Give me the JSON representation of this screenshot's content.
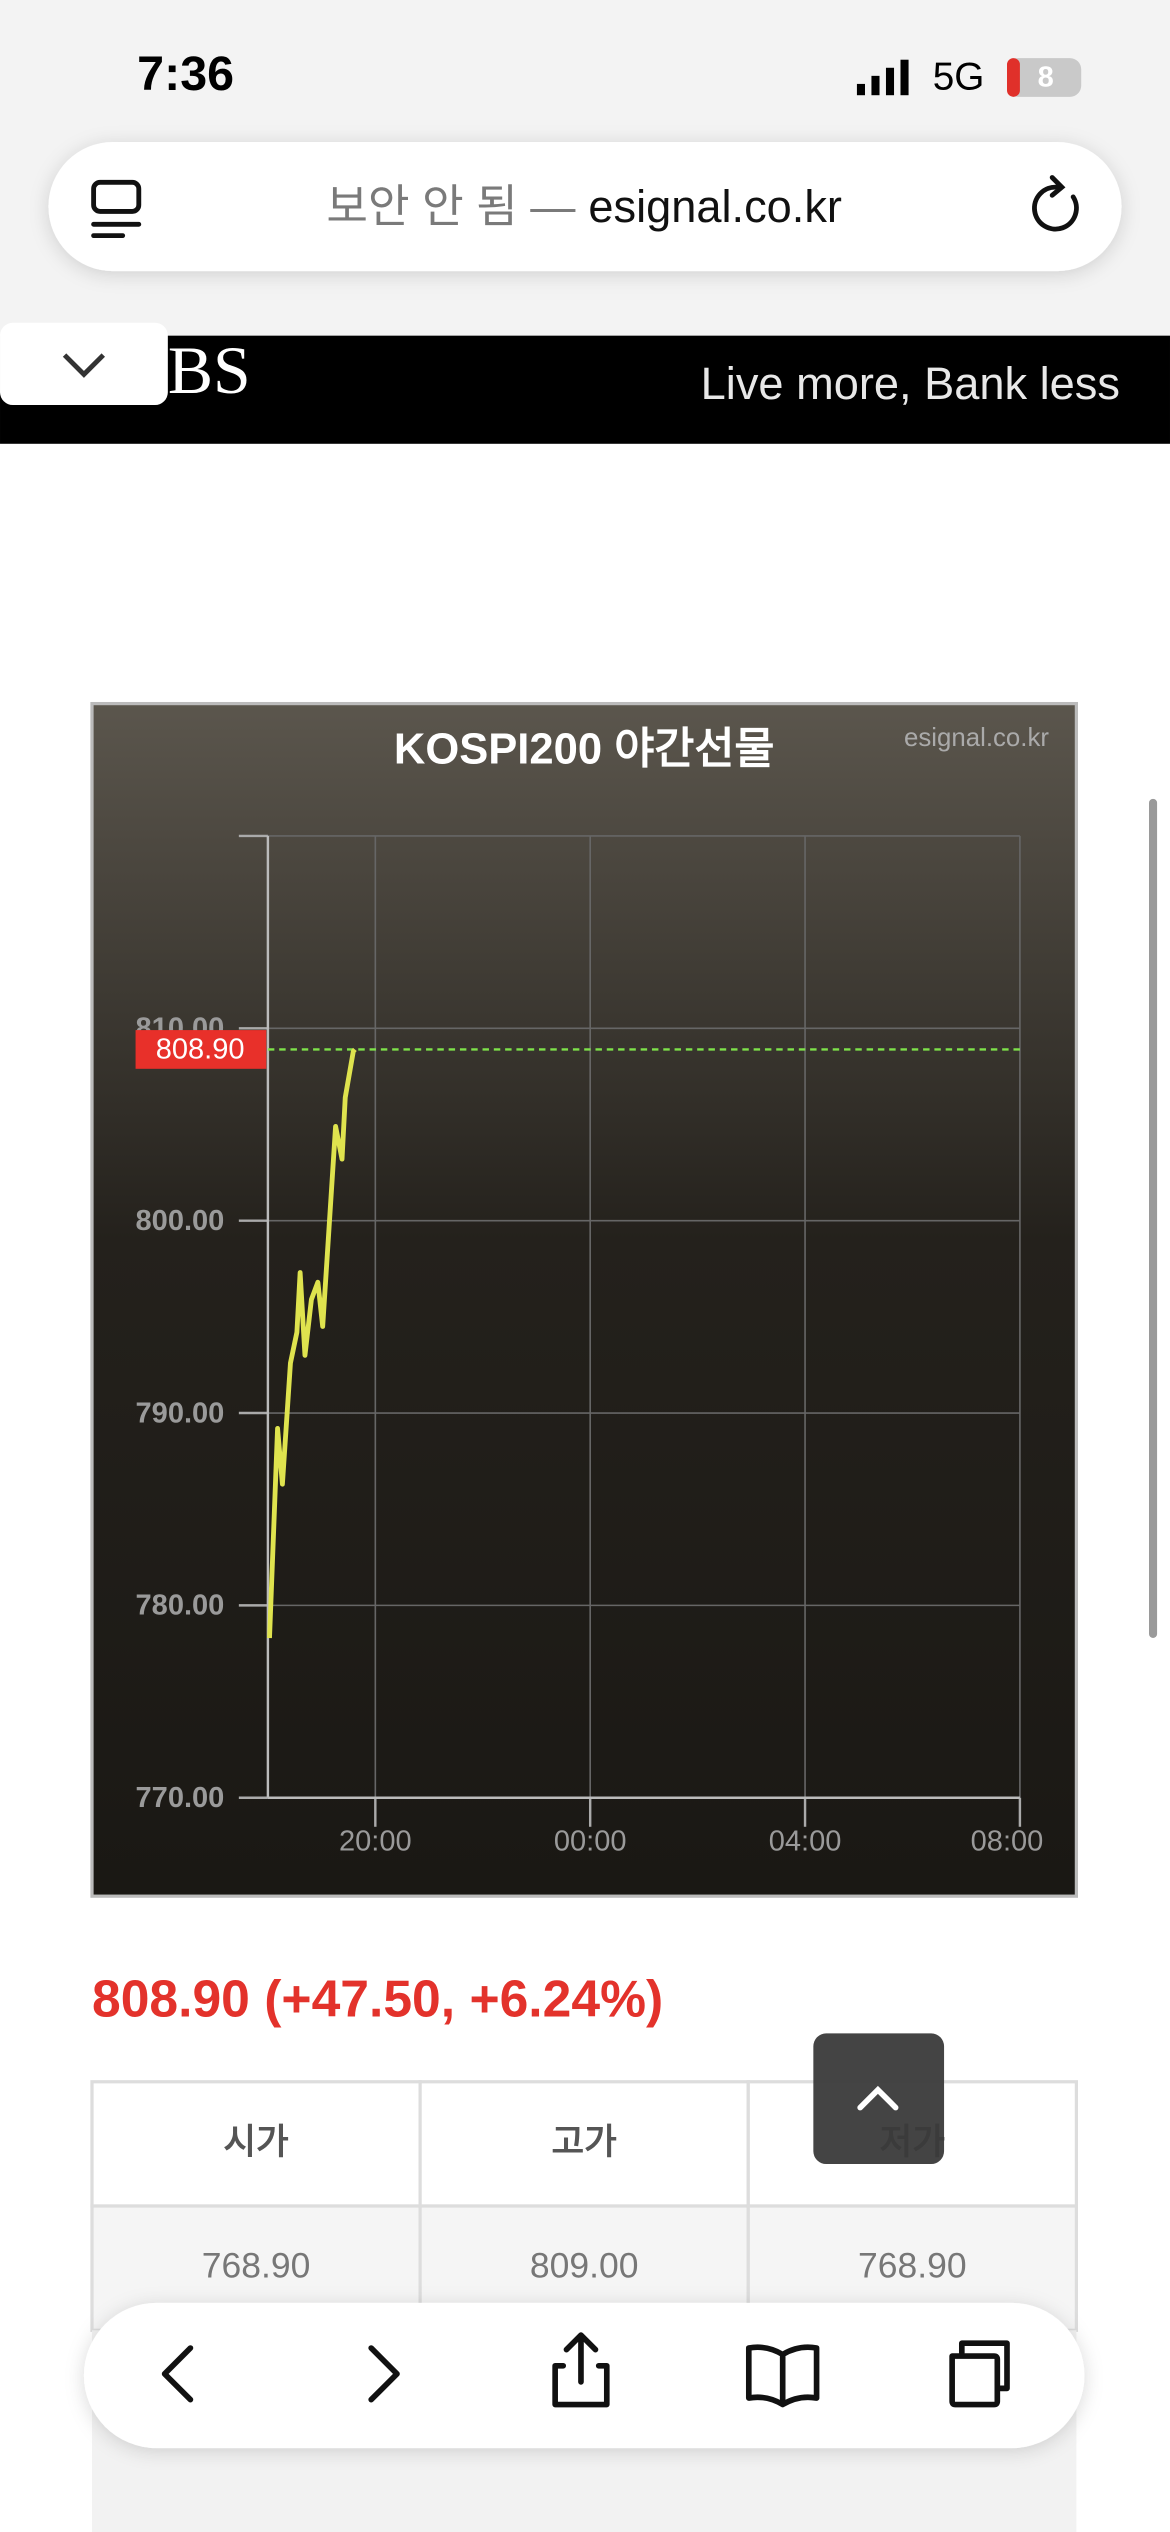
{
  "status": {
    "time": "7:36",
    "network": "5G",
    "battery": "8"
  },
  "url_bar": {
    "security_label": "보안 안 됨 —",
    "domain": "esignal.co.kr"
  },
  "banner": {
    "logo": "BS",
    "slogan": "Live more, Bank less"
  },
  "chart_data": {
    "type": "line",
    "title": "KOSPI200 야간선물",
    "watermark": "esignal.co.kr",
    "x": [
      18.03,
      18.18,
      18.27,
      18.42,
      18.54,
      18.6,
      18.69,
      18.81,
      18.93,
      19.02,
      19.14,
      19.26,
      19.38,
      19.44,
      19.59,
      19.62
    ],
    "values": [
      778.3,
      789.2,
      786.3,
      792.6,
      794.2,
      797.3,
      793.0,
      795.9,
      796.8,
      794.5,
      799.7,
      804.9,
      803.2,
      806.4,
      808.8,
      808.9
    ],
    "color": "#dfe34e",
    "xlim": [
      18,
      32
    ],
    "ylim": [
      770,
      820
    ],
    "xticks": [
      {
        "value": 20,
        "label": "20:00"
      },
      {
        "value": 24,
        "label": "00:00"
      },
      {
        "value": 28,
        "label": "04:00"
      },
      {
        "value": 32,
        "label": "08:00"
      }
    ],
    "yticks": [
      {
        "value": 770,
        "label": "770.00"
      },
      {
        "value": 780,
        "label": "780.00"
      },
      {
        "value": 790,
        "label": "790.00"
      },
      {
        "value": 800,
        "label": "800.00"
      },
      {
        "value": 810,
        "label": "810.00"
      }
    ],
    "grid": true,
    "reference_line": {
      "value": 808.9,
      "label": "808.90",
      "color": "#e8302a"
    }
  },
  "quote": {
    "text": "808.90 (+47.50, +6.24%)"
  },
  "table": {
    "headers": [
      "시가",
      "고가",
      "저가"
    ],
    "rows": [
      [
        "768.90",
        "809.00",
        "768.90"
      ]
    ]
  }
}
